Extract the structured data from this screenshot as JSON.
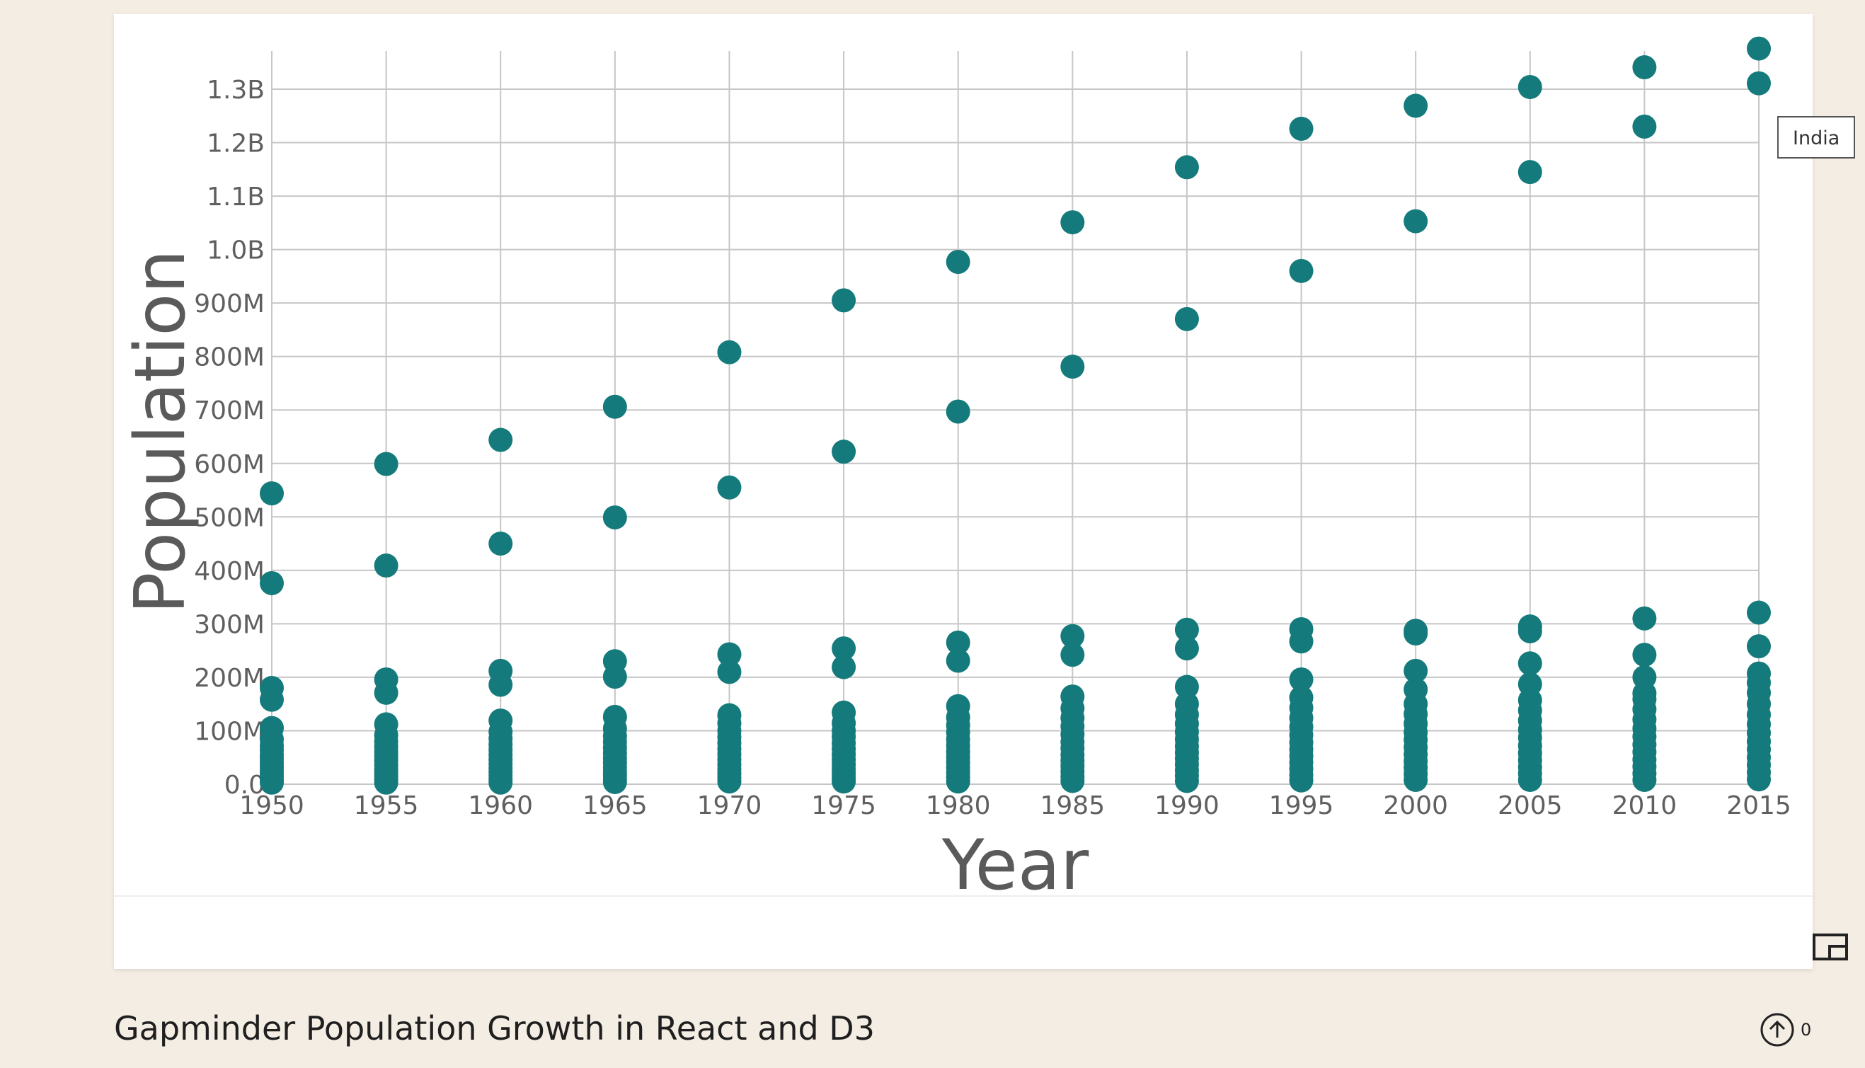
{
  "chart_data": {
    "type": "scatter",
    "title": "",
    "xlabel": "Year",
    "ylabel": "Population",
    "x_ticks": [
      "1950",
      "1955",
      "1960",
      "1965",
      "1970",
      "1975",
      "1980",
      "1985",
      "1990",
      "1995",
      "2000",
      "2005",
      "2010",
      "2015"
    ],
    "y_ticks": [
      {
        "value": 0,
        "label": "0.0"
      },
      {
        "value": 100000000,
        "label": "100M"
      },
      {
        "value": 200000000,
        "label": "200M"
      },
      {
        "value": 300000000,
        "label": "300M"
      },
      {
        "value": 400000000,
        "label": "400M"
      },
      {
        "value": 500000000,
        "label": "500M"
      },
      {
        "value": 600000000,
        "label": "600M"
      },
      {
        "value": 700000000,
        "label": "700M"
      },
      {
        "value": 800000000,
        "label": "800M"
      },
      {
        "value": 900000000,
        "label": "900M"
      },
      {
        "value": 1000000000,
        "label": "1.0B"
      },
      {
        "value": 1100000000,
        "label": "1.1B"
      },
      {
        "value": 1200000000,
        "label": "1.2B"
      },
      {
        "value": 1300000000,
        "label": "1.3B"
      }
    ],
    "xlim": [
      1950,
      2015
    ],
    "ylim": [
      0,
      1380000000
    ],
    "grid": true,
    "point_color": "#157a7b",
    "points_by_year": [
      {
        "year": 1950,
        "populations_millions": [
          544,
          376,
          180,
          158,
          105,
          84,
          72,
          64,
          55,
          48,
          40,
          33,
          26,
          20,
          14,
          8,
          3
        ]
      },
      {
        "year": 1955,
        "populations_millions": [
          599,
          409,
          196,
          171,
          112,
          92,
          80,
          70,
          60,
          52,
          44,
          36,
          28,
          21,
          15,
          9,
          3
        ]
      },
      {
        "year": 1960,
        "populations_millions": [
          644,
          450,
          212,
          186,
          119,
          98,
          85,
          74,
          64,
          55,
          46,
          38,
          30,
          23,
          16,
          9,
          3
        ]
      },
      {
        "year": 1965,
        "populations_millions": [
          706,
          499,
          230,
          201,
          126,
          104,
          90,
          79,
          68,
          58,
          49,
          40,
          32,
          24,
          17,
          10,
          4
        ]
      },
      {
        "year": 1970,
        "populations_millions": [
          808,
          555,
          243,
          210,
          129,
          114,
          100,
          88,
          77,
          66,
          56,
          46,
          37,
          28,
          20,
          12,
          5
        ]
      },
      {
        "year": 1975,
        "populations_millions": [
          905,
          622,
          254,
          219,
          134,
          114,
          100,
          89,
          77,
          66,
          56,
          46,
          37,
          28,
          20,
          12,
          5
        ]
      },
      {
        "year": 1980,
        "populations_millions": [
          977,
          697,
          265,
          231,
          146,
          125,
          110,
          97,
          84,
          72,
          61,
          51,
          41,
          31,
          22,
          13,
          5
        ]
      },
      {
        "year": 1985,
        "populations_millions": [
          1051,
          781,
          277,
          242,
          164,
          142,
          124,
          108,
          93,
          79,
          67,
          55,
          44,
          34,
          24,
          14,
          6
        ]
      },
      {
        "year": 1990,
        "populations_millions": [
          1154,
          870,
          289,
          254,
          182,
          150,
          130,
          113,
          98,
          84,
          71,
          59,
          48,
          37,
          26,
          16,
          6
        ]
      },
      {
        "year": 1995,
        "populations_millions": [
          1226,
          960,
          290,
          267,
          196,
          162,
          143,
          124,
          107,
          92,
          78,
          65,
          53,
          41,
          29,
          17,
          7
        ]
      },
      {
        "year": 2000,
        "populations_millions": [
          1269,
          1053,
          287,
          282,
          212,
          177,
          150,
          131,
          113,
          97,
          83,
          69,
          56,
          43,
          31,
          19,
          8
        ]
      },
      {
        "year": 2005,
        "populations_millions": [
          1304,
          1145,
          295,
          286,
          226,
          187,
          157,
          138,
          119,
          102,
          87,
          72,
          58,
          45,
          32,
          20,
          8
        ]
      },
      {
        "year": 2010,
        "populations_millions": [
          1341,
          1230,
          310,
          242,
          200,
          170,
          159,
          140,
          121,
          104,
          89,
          74,
          60,
          46,
          33,
          20,
          8
        ]
      },
      {
        "year": 2015,
        "populations_millions": [
          1376,
          1311,
          321,
          258,
          207,
          190,
          171,
          150,
          130,
          112,
          96,
          80,
          65,
          50,
          36,
          22,
          9
        ]
      }
    ]
  },
  "tooltip": {
    "label": "India"
  },
  "controls": {
    "pip_icon": "picture-in-picture-icon",
    "fullscreen_icon": "fullscreen-icon"
  },
  "footer": {
    "title": "Gapminder Population Growth in React and D3",
    "upvote_icon": "upvote-arrow-icon",
    "upvote_count": "0"
  }
}
